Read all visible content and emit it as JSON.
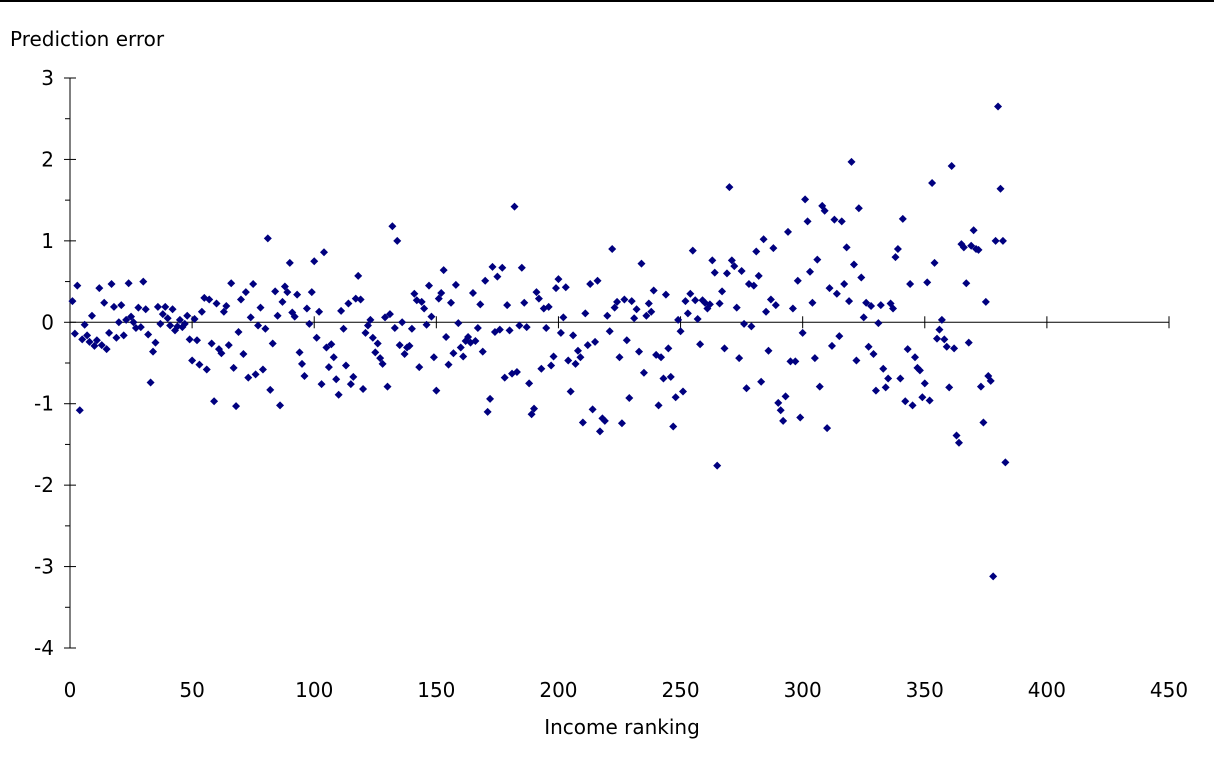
{
  "chart_data": {
    "type": "scatter",
    "title": "",
    "xlabel": "Income ranking",
    "ylabel": "Prediction error",
    "xlim": [
      0,
      450
    ],
    "ylim": [
      -4,
      3
    ],
    "x_ticks": [
      0,
      50,
      100,
      150,
      200,
      250,
      300,
      350,
      400,
      450
    ],
    "y_ticks": [
      -4,
      -3,
      -2,
      -1,
      0,
      1,
      2,
      3
    ],
    "x_tick_labels": [
      "0",
      "50",
      "100",
      "150",
      "200",
      "250",
      "300",
      "350",
      "400",
      "450"
    ],
    "y_tick_labels": [
      "-4",
      "-3",
      "-2",
      "-1",
      "0",
      "1",
      "2",
      "3"
    ],
    "grid": false,
    "legend": "none",
    "marker_color": "#00007f",
    "marker": "diamond",
    "points": [
      [
        1,
        0.26
      ],
      [
        2,
        -0.14
      ],
      [
        3,
        0.45
      ],
      [
        4,
        -1.08
      ],
      [
        5,
        -0.21
      ],
      [
        6,
        -0.03
      ],
      [
        7,
        -0.16
      ],
      [
        8,
        -0.24
      ],
      [
        9,
        0.08
      ],
      [
        10,
        -0.29
      ],
      [
        11,
        -0.22
      ],
      [
        12,
        0.42
      ],
      [
        13,
        -0.28
      ],
      [
        14,
        0.24
      ],
      [
        15,
        -0.33
      ],
      [
        16,
        -0.13
      ],
      [
        17,
        0.47
      ],
      [
        18,
        0.19
      ],
      [
        19,
        -0.19
      ],
      [
        20,
        0.0
      ],
      [
        21,
        0.21
      ],
      [
        22,
        -0.16
      ],
      [
        23,
        0.03
      ],
      [
        24,
        0.48
      ],
      [
        25,
        0.07
      ],
      [
        26,
        0.0
      ],
      [
        27,
        -0.07
      ],
      [
        28,
        0.18
      ],
      [
        29,
        -0.06
      ],
      [
        30,
        0.5
      ],
      [
        31,
        0.16
      ],
      [
        32,
        -0.15
      ],
      [
        33,
        -0.74
      ],
      [
        34,
        -0.36
      ],
      [
        35,
        -0.25
      ],
      [
        36,
        0.19
      ],
      [
        37,
        -0.02
      ],
      [
        38,
        0.1
      ],
      [
        39,
        0.19
      ],
      [
        40,
        0.05
      ],
      [
        41,
        -0.04
      ],
      [
        42,
        0.16
      ],
      [
        43,
        -0.1
      ],
      [
        44,
        -0.05
      ],
      [
        45,
        0.03
      ],
      [
        46,
        -0.06
      ],
      [
        47,
        -0.02
      ],
      [
        48,
        0.08
      ],
      [
        49,
        -0.21
      ],
      [
        50,
        -0.47
      ],
      [
        51,
        0.04
      ],
      [
        52,
        -0.22
      ],
      [
        53,
        -0.52
      ],
      [
        54,
        0.13
      ],
      [
        55,
        0.3
      ],
      [
        56,
        -0.58
      ],
      [
        57,
        0.28
      ],
      [
        58,
        -0.26
      ],
      [
        59,
        -0.97
      ],
      [
        60,
        0.23
      ],
      [
        61,
        -0.33
      ],
      [
        62,
        -0.38
      ],
      [
        63,
        0.13
      ],
      [
        64,
        0.2
      ],
      [
        65,
        -0.28
      ],
      [
        66,
        0.48
      ],
      [
        67,
        -0.56
      ],
      [
        68,
        -1.03
      ],
      [
        69,
        -0.12
      ],
      [
        70,
        0.28
      ],
      [
        71,
        -0.39
      ],
      [
        72,
        0.37
      ],
      [
        73,
        -0.68
      ],
      [
        74,
        0.06
      ],
      [
        75,
        0.47
      ],
      [
        76,
        -0.64
      ],
      [
        77,
        -0.04
      ],
      [
        78,
        0.18
      ],
      [
        79,
        -0.58
      ],
      [
        80,
        -0.08
      ],
      [
        81,
        1.03
      ],
      [
        82,
        -0.83
      ],
      [
        83,
        -0.26
      ],
      [
        84,
        0.38
      ],
      [
        85,
        0.08
      ],
      [
        86,
        -1.02
      ],
      [
        87,
        0.25
      ],
      [
        88,
        0.44
      ],
      [
        89,
        0.37
      ],
      [
        90,
        0.73
      ],
      [
        91,
        0.12
      ],
      [
        92,
        0.07
      ],
      [
        93,
        0.34
      ],
      [
        94,
        -0.37
      ],
      [
        95,
        -0.51
      ],
      [
        96,
        -0.66
      ],
      [
        97,
        0.17
      ],
      [
        98,
        -0.02
      ],
      [
        99,
        0.37
      ],
      [
        100,
        0.75
      ],
      [
        101,
        -0.19
      ],
      [
        102,
        0.13
      ],
      [
        103,
        -0.76
      ],
      [
        104,
        0.86
      ],
      [
        105,
        -0.31
      ],
      [
        106,
        -0.55
      ],
      [
        107,
        -0.27
      ],
      [
        108,
        -0.43
      ],
      [
        109,
        -0.7
      ],
      [
        110,
        -0.89
      ],
      [
        111,
        0.14
      ],
      [
        112,
        -0.08
      ],
      [
        113,
        -0.53
      ],
      [
        114,
        0.23
      ],
      [
        115,
        -0.76
      ],
      [
        116,
        -0.67
      ],
      [
        117,
        0.29
      ],
      [
        118,
        0.57
      ],
      [
        119,
        0.28
      ],
      [
        120,
        -0.82
      ],
      [
        121,
        -0.13
      ],
      [
        122,
        -0.04
      ],
      [
        123,
        0.03
      ],
      [
        124,
        -0.19
      ],
      [
        125,
        -0.37
      ],
      [
        126,
        -0.26
      ],
      [
        127,
        -0.44
      ],
      [
        128,
        -0.51
      ],
      [
        129,
        0.06
      ],
      [
        130,
        -0.79
      ],
      [
        131,
        0.1
      ],
      [
        132,
        1.18
      ],
      [
        133,
        -0.07
      ],
      [
        134,
        1.0
      ],
      [
        135,
        -0.28
      ],
      [
        136,
        0.0
      ],
      [
        137,
        -0.39
      ],
      [
        138,
        -0.31
      ],
      [
        139,
        -0.29
      ],
      [
        140,
        -0.08
      ],
      [
        141,
        0.35
      ],
      [
        142,
        0.27
      ],
      [
        143,
        -0.55
      ],
      [
        144,
        0.25
      ],
      [
        145,
        0.17
      ],
      [
        146,
        -0.03
      ],
      [
        147,
        0.45
      ],
      [
        148,
        0.07
      ],
      [
        149,
        -0.43
      ],
      [
        150,
        -0.84
      ],
      [
        151,
        0.29
      ],
      [
        152,
        0.36
      ],
      [
        153,
        0.64
      ],
      [
        154,
        -0.18
      ],
      [
        155,
        -0.52
      ],
      [
        156,
        0.24
      ],
      [
        157,
        -0.38
      ],
      [
        158,
        0.46
      ],
      [
        159,
        -0.01
      ],
      [
        160,
        -0.31
      ],
      [
        161,
        -0.42
      ],
      [
        162,
        -0.23
      ],
      [
        163,
        -0.18
      ],
      [
        164,
        -0.25
      ],
      [
        165,
        0.36
      ],
      [
        166,
        -0.23
      ],
      [
        167,
        -0.07
      ],
      [
        168,
        0.22
      ],
      [
        169,
        -0.36
      ],
      [
        170,
        0.51
      ],
      [
        171,
        -1.1
      ],
      [
        172,
        -0.94
      ],
      [
        173,
        0.68
      ],
      [
        174,
        -0.12
      ],
      [
        175,
        0.56
      ],
      [
        176,
        -0.09
      ],
      [
        177,
        0.67
      ],
      [
        178,
        -0.68
      ],
      [
        179,
        0.21
      ],
      [
        180,
        -0.1
      ],
      [
        181,
        -0.63
      ],
      [
        182,
        1.42
      ],
      [
        183,
        -0.61
      ],
      [
        184,
        -0.04
      ],
      [
        185,
        0.67
      ],
      [
        186,
        0.24
      ],
      [
        187,
        -0.06
      ],
      [
        188,
        -0.75
      ],
      [
        189,
        -1.13
      ],
      [
        190,
        -1.06
      ],
      [
        191,
        0.37
      ],
      [
        192,
        0.29
      ],
      [
        193,
        -0.57
      ],
      [
        194,
        0.17
      ],
      [
        195,
        -0.07
      ],
      [
        196,
        0.19
      ],
      [
        197,
        -0.53
      ],
      [
        198,
        -0.42
      ],
      [
        199,
        0.42
      ],
      [
        200,
        0.53
      ],
      [
        201,
        -0.13
      ],
      [
        202,
        0.06
      ],
      [
        203,
        0.43
      ],
      [
        204,
        -0.47
      ],
      [
        205,
        -0.85
      ],
      [
        206,
        -0.16
      ],
      [
        207,
        -0.51
      ],
      [
        208,
        -0.35
      ],
      [
        209,
        -0.43
      ],
      [
        210,
        -1.23
      ],
      [
        211,
        0.11
      ],
      [
        212,
        -0.28
      ],
      [
        213,
        0.47
      ],
      [
        214,
        -1.07
      ],
      [
        215,
        -0.24
      ],
      [
        216,
        0.51
      ],
      [
        217,
        -1.34
      ],
      [
        218,
        -1.18
      ],
      [
        219,
        -1.21
      ],
      [
        220,
        0.08
      ],
      [
        221,
        -0.11
      ],
      [
        222,
        0.9
      ],
      [
        223,
        0.18
      ],
      [
        224,
        0.25
      ],
      [
        225,
        -0.43
      ],
      [
        226,
        -1.24
      ],
      [
        227,
        0.28
      ],
      [
        228,
        -0.22
      ],
      [
        229,
        -0.93
      ],
      [
        230,
        0.26
      ],
      [
        231,
        0.05
      ],
      [
        232,
        0.16
      ],
      [
        233,
        -0.36
      ],
      [
        234,
        0.72
      ],
      [
        235,
        -0.62
      ],
      [
        236,
        0.08
      ],
      [
        237,
        0.23
      ],
      [
        238,
        0.13
      ],
      [
        239,
        0.39
      ],
      [
        240,
        -0.4
      ],
      [
        241,
        -1.02
      ],
      [
        242,
        -0.43
      ],
      [
        243,
        -0.69
      ],
      [
        244,
        0.34
      ],
      [
        245,
        -0.32
      ],
      [
        246,
        -0.67
      ],
      [
        247,
        -1.28
      ],
      [
        248,
        -0.92
      ],
      [
        249,
        0.03
      ],
      [
        250,
        -0.11
      ],
      [
        251,
        -0.85
      ],
      [
        252,
        0.26
      ],
      [
        253,
        0.11
      ],
      [
        254,
        0.35
      ],
      [
        255,
        0.88
      ],
      [
        256,
        0.27
      ],
      [
        257,
        0.04
      ],
      [
        258,
        -0.27
      ],
      [
        259,
        0.27
      ],
      [
        260,
        0.24
      ],
      [
        261,
        0.17
      ],
      [
        262,
        0.22
      ],
      [
        263,
        0.76
      ],
      [
        264,
        0.61
      ],
      [
        265,
        -1.76
      ],
      [
        266,
        0.23
      ],
      [
        267,
        0.38
      ],
      [
        268,
        -0.32
      ],
      [
        269,
        0.6
      ],
      [
        270,
        1.66
      ],
      [
        271,
        0.76
      ],
      [
        272,
        0.69
      ],
      [
        273,
        0.18
      ],
      [
        274,
        -0.44
      ],
      [
        275,
        0.63
      ],
      [
        276,
        -0.02
      ],
      [
        277,
        -0.81
      ],
      [
        278,
        0.47
      ],
      [
        279,
        -0.05
      ],
      [
        280,
        0.45
      ],
      [
        281,
        0.87
      ],
      [
        282,
        0.57
      ],
      [
        283,
        -0.73
      ],
      [
        284,
        1.02
      ],
      [
        285,
        0.13
      ],
      [
        286,
        -0.35
      ],
      [
        287,
        0.28
      ],
      [
        288,
        0.91
      ],
      [
        289,
        0.21
      ],
      [
        290,
        -0.99
      ],
      [
        291,
        -1.08
      ],
      [
        292,
        -1.21
      ],
      [
        293,
        -0.91
      ],
      [
        294,
        1.11
      ],
      [
        295,
        -0.48
      ],
      [
        296,
        0.17
      ],
      [
        297,
        -0.48
      ],
      [
        298,
        0.51
      ],
      [
        299,
        -1.17
      ],
      [
        300,
        -0.13
      ],
      [
        301,
        1.51
      ],
      [
        302,
        1.24
      ],
      [
        303,
        0.62
      ],
      [
        304,
        0.24
      ],
      [
        305,
        -0.44
      ],
      [
        306,
        0.77
      ],
      [
        307,
        -0.79
      ],
      [
        308,
        1.43
      ],
      [
        309,
        1.37
      ],
      [
        310,
        -1.3
      ],
      [
        311,
        0.42
      ],
      [
        312,
        -0.29
      ],
      [
        313,
        1.26
      ],
      [
        314,
        0.35
      ],
      [
        315,
        -0.17
      ],
      [
        316,
        1.24
      ],
      [
        317,
        0.47
      ],
      [
        318,
        0.92
      ],
      [
        319,
        0.26
      ],
      [
        320,
        1.97
      ],
      [
        321,
        0.71
      ],
      [
        322,
        -0.47
      ],
      [
        323,
        1.4
      ],
      [
        324,
        0.55
      ],
      [
        325,
        0.06
      ],
      [
        326,
        0.24
      ],
      [
        327,
        -0.3
      ],
      [
        328,
        0.2
      ],
      [
        329,
        -0.39
      ],
      [
        330,
        -0.84
      ],
      [
        331,
        -0.01
      ],
      [
        332,
        0.21
      ],
      [
        333,
        -0.57
      ],
      [
        334,
        -0.8
      ],
      [
        335,
        -0.69
      ],
      [
        336,
        0.23
      ],
      [
        337,
        0.17
      ],
      [
        338,
        0.8
      ],
      [
        339,
        0.9
      ],
      [
        340,
        -0.69
      ],
      [
        341,
        1.27
      ],
      [
        342,
        -0.97
      ],
      [
        343,
        -0.33
      ],
      [
        344,
        0.47
      ],
      [
        345,
        -1.02
      ],
      [
        346,
        -0.43
      ],
      [
        347,
        -0.56
      ],
      [
        348,
        -0.59
      ],
      [
        349,
        -0.92
      ],
      [
        350,
        -0.75
      ],
      [
        351,
        0.49
      ],
      [
        352,
        -0.96
      ],
      [
        353,
        1.71
      ],
      [
        354,
        0.73
      ],
      [
        355,
        -0.2
      ],
      [
        356,
        -0.09
      ],
      [
        357,
        0.03
      ],
      [
        358,
        -0.21
      ],
      [
        359,
        -0.3
      ],
      [
        360,
        -0.8
      ],
      [
        361,
        1.92
      ],
      [
        362,
        -0.32
      ],
      [
        363,
        -1.39
      ],
      [
        364,
        -1.48
      ],
      [
        365,
        0.96
      ],
      [
        366,
        0.92
      ],
      [
        367,
        0.48
      ],
      [
        368,
        -0.25
      ],
      [
        369,
        0.94
      ],
      [
        370,
        1.13
      ],
      [
        371,
        0.9
      ],
      [
        372,
        0.89
      ],
      [
        373,
        -0.79
      ],
      [
        374,
        -1.23
      ],
      [
        375,
        0.25
      ],
      [
        376,
        -0.66
      ],
      [
        377,
        -0.72
      ],
      [
        378,
        -3.12
      ],
      [
        379,
        1.0
      ],
      [
        380,
        2.65
      ],
      [
        381,
        1.64
      ],
      [
        382,
        1.0
      ],
      [
        383,
        -1.72
      ]
    ]
  }
}
